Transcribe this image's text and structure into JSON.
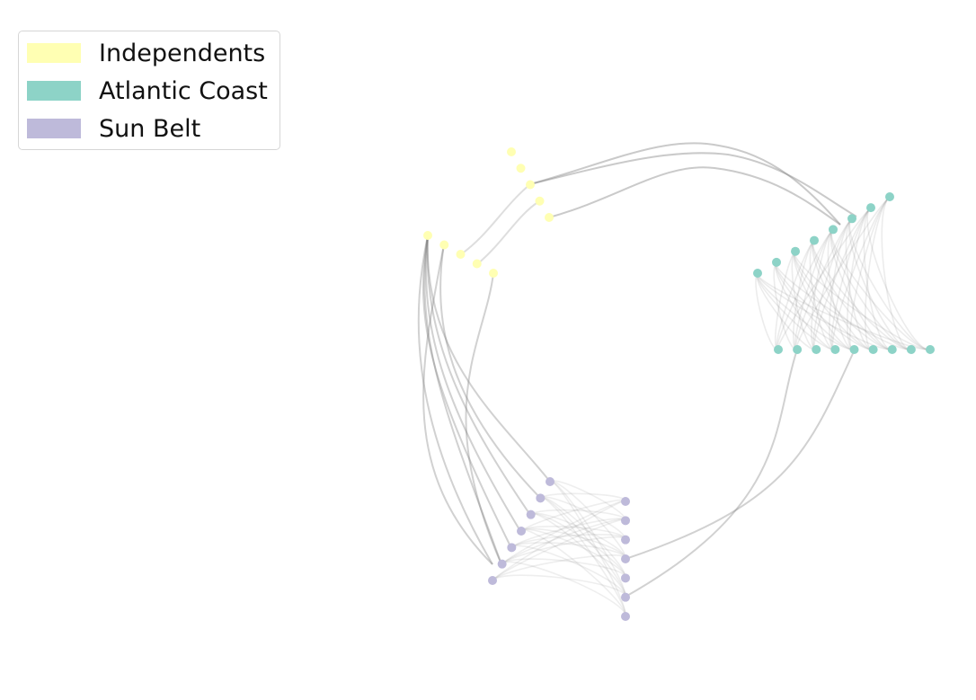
{
  "legend": {
    "items": [
      {
        "label": "Independents",
        "color": "#ffffb3"
      },
      {
        "label": "Atlantic Coast",
        "color": "#8dd3c7"
      },
      {
        "label": "Sun Belt",
        "color": "#bebada"
      }
    ]
  },
  "groups": {
    "independents": {
      "node_color": "#ffffb3",
      "node_count": 10
    },
    "atlantic_coast": {
      "node_color": "#8dd3c7",
      "node_count": 17
    },
    "sun_belt": {
      "node_color": "#bebada",
      "node_count": 14
    }
  },
  "edge_color": "#7a7a7a"
}
